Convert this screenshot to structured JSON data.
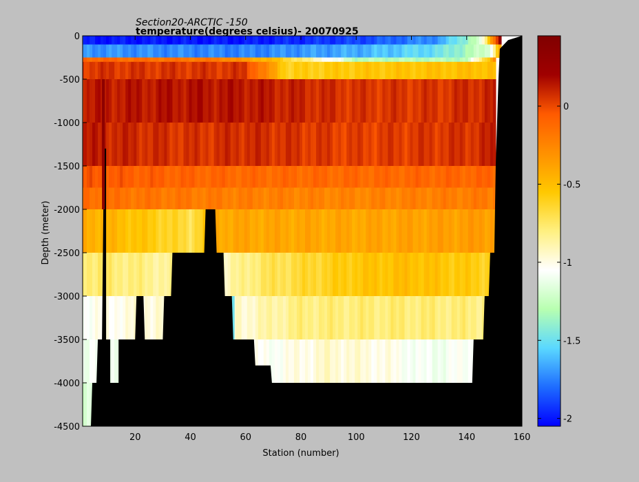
{
  "chart_data": {
    "type": "heatmap",
    "title": "Section20-ARCTIC  -150",
    "subtitle": "temperature(degrees  celsius)- 20070925",
    "xlabel": "Station (number)",
    "ylabel": "Depth (meter)",
    "xlim": [
      1,
      160
    ],
    "ylim": [
      -4500,
      0
    ],
    "x_ticks": [
      "20",
      "40",
      "60",
      "80",
      "100",
      "120",
      "140",
      "160"
    ],
    "y_ticks": [
      "0",
      "-500",
      "-1000",
      "-1500",
      "-2000",
      "-2500",
      "-3000",
      "-3500",
      "-4000",
      "-4500"
    ],
    "x_tick_values": [
      20,
      40,
      60,
      80,
      100,
      120,
      140,
      160
    ],
    "y_tick_values": [
      0,
      -500,
      -1000,
      -1500,
      -2000,
      -2500,
      -3000,
      -3500,
      -4000,
      -4500
    ],
    "colorbar": {
      "range": [
        -2.05,
        0.45
      ],
      "ticks": [
        "0",
        "-0.5",
        "-1",
        "-1.5",
        "-2"
      ],
      "tick_values": [
        0,
        -0.5,
        -1,
        -1.5,
        -2
      ],
      "colormap": [
        "#0000ff",
        "#1e6cff",
        "#5ad8ff",
        "#b8ffb0",
        "#ffffff",
        "#fff080",
        "#ffc800",
        "#ff9000",
        "#ff5a00",
        "#a00000",
        "#800000"
      ]
    },
    "depth_layers": [
      0,
      -100,
      -250,
      -300,
      -500,
      -1000,
      -1500,
      -1750,
      -2000,
      -2500,
      -3000,
      -3500,
      -4000,
      -4500
    ],
    "layer_profiles": [
      {
        "top": 0,
        "bottom": -100,
        "temps": [
          [
            1,
            -2.0
          ],
          [
            60,
            -2.0
          ],
          [
            100,
            -1.9
          ],
          [
            130,
            -1.7
          ],
          [
            145,
            -1.2
          ],
          [
            152,
            0.3
          ]
        ]
      },
      {
        "top": -100,
        "bottom": -250,
        "temps": [
          [
            1,
            -1.7
          ],
          [
            60,
            -1.75
          ],
          [
            100,
            -1.65
          ],
          [
            130,
            -1.5
          ],
          [
            148,
            -1.2
          ],
          [
            152,
            -0.4
          ]
        ]
      },
      {
        "top": -250,
        "bottom": -300,
        "temps": [
          [
            1,
            -0.1
          ],
          [
            50,
            -0.2
          ],
          [
            70,
            -0.5
          ],
          [
            100,
            -1.3
          ],
          [
            140,
            -1.3
          ],
          [
            150,
            -0.3
          ]
        ]
      },
      {
        "top": -300,
        "bottom": -500,
        "temps": [
          [
            1,
            0.05
          ],
          [
            60,
            0.05
          ],
          [
            75,
            -0.6
          ],
          [
            100,
            -0.55
          ],
          [
            150,
            -0.5
          ]
        ]
      },
      {
        "top": -500,
        "bottom": -1000,
        "temps": [
          [
            1,
            0.12
          ],
          [
            40,
            0.15
          ],
          [
            60,
            0.14
          ],
          [
            100,
            0.05
          ],
          [
            130,
            0.05
          ],
          [
            150,
            0.1
          ]
        ]
      },
      {
        "top": -1000,
        "bottom": -1500,
        "temps": [
          [
            1,
            0.12
          ],
          [
            40,
            0.05
          ],
          [
            60,
            0.08
          ],
          [
            100,
            0.02
          ],
          [
            140,
            0.06
          ],
          [
            150,
            0.1
          ]
        ]
      },
      {
        "top": -1500,
        "bottom": -1750,
        "temps": [
          [
            1,
            -0.05
          ],
          [
            60,
            -0.12
          ],
          [
            100,
            -0.12
          ],
          [
            150,
            -0.1
          ]
        ]
      },
      {
        "top": -1750,
        "bottom": -2000,
        "temps": [
          [
            1,
            -0.15
          ],
          [
            60,
            -0.22
          ],
          [
            100,
            -0.25
          ],
          [
            150,
            -0.2
          ]
        ]
      },
      {
        "top": -2000,
        "bottom": -2500,
        "temps": [
          [
            1,
            -0.4
          ],
          [
            30,
            -0.6
          ],
          [
            40,
            -0.7
          ],
          [
            50,
            -0.4
          ],
          [
            100,
            -0.4
          ],
          [
            150,
            -0.35
          ]
        ]
      },
      {
        "top": -2500,
        "bottom": -3000,
        "temps": [
          [
            1,
            -0.75
          ],
          [
            20,
            -0.8
          ],
          [
            50,
            -0.95
          ],
          [
            65,
            -0.75
          ],
          [
            100,
            -0.55
          ],
          [
            120,
            -0.5
          ],
          [
            148,
            -0.6
          ]
        ]
      },
      {
        "top": -3000,
        "bottom": -3500,
        "temps": [
          [
            1,
            -1.05
          ],
          [
            30,
            -0.95
          ],
          [
            60,
            -0.95
          ],
          [
            80,
            -0.8
          ],
          [
            120,
            -0.78
          ],
          [
            146,
            -0.8
          ]
        ]
      },
      {
        "top": -3500,
        "bottom": -4000,
        "temps": [
          [
            1,
            -1.1
          ],
          [
            70,
            -1.05
          ],
          [
            90,
            -0.95
          ],
          [
            110,
            -1.0
          ],
          [
            125,
            -1.1
          ],
          [
            144,
            -1.05
          ]
        ]
      },
      {
        "top": -4000,
        "bottom": -4500,
        "temps": [
          [
            1,
            -1.2
          ],
          [
            4,
            -1.2
          ]
        ]
      }
    ],
    "bathymetry": [
      [
        1,
        -4500
      ],
      [
        4,
        -4500
      ],
      [
        4.5,
        -4000
      ],
      [
        6,
        -4000
      ],
      [
        6.5,
        -3500
      ],
      [
        8,
        -3500
      ],
      [
        8.5,
        -2000
      ],
      [
        9,
        -2000
      ],
      [
        9,
        -1300
      ],
      [
        9.5,
        -1300
      ],
      [
        9.5,
        -3500
      ],
      [
        11,
        -3500
      ],
      [
        11,
        -4000
      ],
      [
        14,
        -4000
      ],
      [
        14,
        -3500
      ],
      [
        20,
        -3500
      ],
      [
        20.5,
        -3000
      ],
      [
        23,
        -3000
      ],
      [
        23.5,
        -3500
      ],
      [
        30,
        -3500
      ],
      [
        30.5,
        -3000
      ],
      [
        33,
        -3000
      ],
      [
        33.5,
        -2500
      ],
      [
        45,
        -2500
      ],
      [
        45.5,
        -2000
      ],
      [
        49,
        -2000
      ],
      [
        49.5,
        -2500
      ],
      [
        52,
        -2500
      ],
      [
        52.5,
        -3000
      ],
      [
        55,
        -3000
      ],
      [
        55.5,
        -3500
      ],
      [
        63,
        -3500
      ],
      [
        63.5,
        -3800
      ],
      [
        69,
        -3800
      ],
      [
        69.5,
        -4000
      ],
      [
        142,
        -4000
      ],
      [
        142.5,
        -3500
      ],
      [
        146,
        -3500
      ],
      [
        146.5,
        -3000
      ],
      [
        148,
        -3000
      ],
      [
        148.5,
        -2500
      ],
      [
        150,
        -2500
      ],
      [
        150.5,
        -1500
      ],
      [
        151,
        -1000
      ],
      [
        151.5,
        -500
      ],
      [
        152,
        -150
      ],
      [
        155,
        -50
      ],
      [
        160,
        0
      ]
    ],
    "anomaly_streaks": [
      {
        "x": 8.5,
        "top": -500,
        "bottom": -2000,
        "temp": 0.35
      },
      {
        "x": 55.5,
        "top": -3000,
        "bottom": -3500,
        "temp": -1.5
      }
    ]
  }
}
